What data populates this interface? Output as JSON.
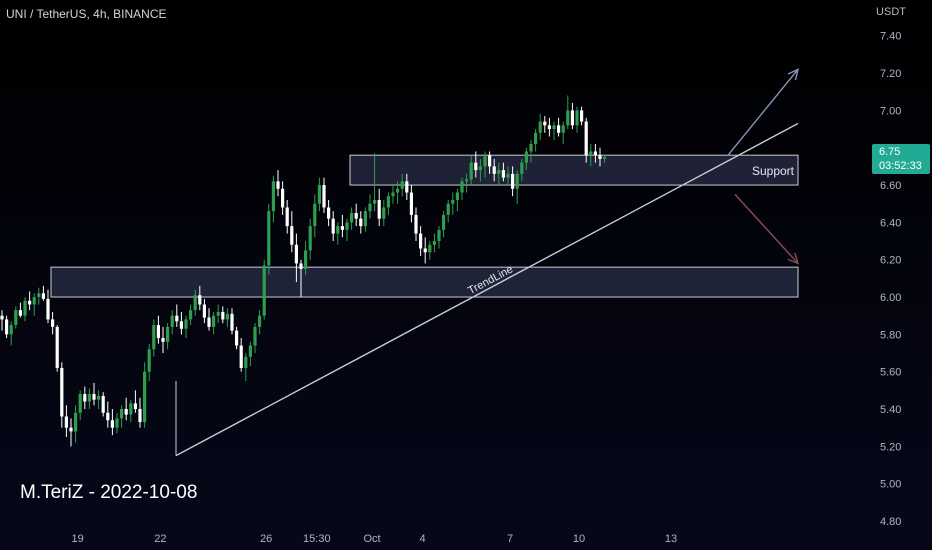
{
  "header": {
    "symbol_line": "UNI / TetherUS, 4h, BINANCE",
    "currency": "USDT"
  },
  "watermark": {
    "signature": "M.TeriZ - 2022-10-08"
  },
  "price_badge": {
    "price": "6.75",
    "countdown": "03:52:33"
  },
  "colors": {
    "background": "#000000",
    "up": "#26a69a",
    "up_body": "#2e9e4f",
    "down": "#ffffff",
    "zone_fill": "#2a2e45",
    "zone_border": "#c9cbd6",
    "trendline": "#c9cbd6",
    "arrow_up": "#8a93b8",
    "arrow_down": "#8a4b55",
    "badge": "#22ab94"
  },
  "chart_data": {
    "type": "candlestick",
    "symbol": "UNI / TetherUS",
    "timeframe": "4h",
    "exchange": "BINANCE",
    "y_axis": {
      "unit": "USDT",
      "ticks": [
        "4.80",
        "5.00",
        "5.20",
        "5.40",
        "5.60",
        "5.80",
        "6.00",
        "6.20",
        "6.40",
        "6.60",
        "6.80",
        "7.00",
        "7.20",
        "7.40"
      ],
      "range": [
        4.8,
        7.42
      ]
    },
    "x_axis": {
      "tick_labels": [
        "19",
        "22",
        "26",
        "15:30",
        "Oct",
        "4",
        "7",
        "10",
        "13"
      ],
      "bar_positions": [
        11,
        29,
        52,
        63,
        75,
        86,
        105,
        120,
        140
      ]
    },
    "bar_count": 155,
    "last_price": 6.75,
    "candles_ohlc": [
      [
        5.9,
        5.93,
        5.82,
        5.88
      ],
      [
        5.88,
        5.9,
        5.78,
        5.8
      ],
      [
        5.8,
        5.87,
        5.74,
        5.85
      ],
      [
        5.85,
        5.95,
        5.83,
        5.93
      ],
      [
        5.93,
        5.97,
        5.89,
        5.9
      ],
      [
        5.9,
        6.0,
        5.87,
        5.98
      ],
      [
        5.98,
        6.03,
        5.93,
        5.96
      ],
      [
        5.96,
        6.02,
        5.9,
        6.0
      ],
      [
        6.0,
        6.05,
        5.96,
        6.02
      ],
      [
        6.02,
        6.06,
        5.98,
        5.99
      ],
      [
        5.99,
        6.04,
        5.86,
        5.88
      ],
      [
        5.88,
        5.92,
        5.8,
        5.84
      ],
      [
        5.84,
        5.85,
        5.6,
        5.62
      ],
      [
        5.62,
        5.65,
        5.3,
        5.36
      ],
      [
        5.36,
        5.42,
        5.25,
        5.3
      ],
      [
        5.3,
        5.35,
        5.2,
        5.28
      ],
      [
        5.28,
        5.42,
        5.22,
        5.38
      ],
      [
        5.38,
        5.5,
        5.34,
        5.48
      ],
      [
        5.48,
        5.52,
        5.4,
        5.44
      ],
      [
        5.44,
        5.51,
        5.4,
        5.48
      ],
      [
        5.48,
        5.54,
        5.42,
        5.45
      ],
      [
        5.45,
        5.5,
        5.4,
        5.47
      ],
      [
        5.47,
        5.49,
        5.36,
        5.38
      ],
      [
        5.38,
        5.44,
        5.3,
        5.34
      ],
      [
        5.34,
        5.4,
        5.26,
        5.3
      ],
      [
        5.3,
        5.38,
        5.27,
        5.35
      ],
      [
        5.35,
        5.42,
        5.3,
        5.4
      ],
      [
        5.4,
        5.46,
        5.34,
        5.37
      ],
      [
        5.37,
        5.45,
        5.33,
        5.43
      ],
      [
        5.43,
        5.5,
        5.38,
        5.4
      ],
      [
        5.4,
        5.46,
        5.3,
        5.33
      ],
      [
        5.33,
        5.65,
        5.3,
        5.6
      ],
      [
        5.6,
        5.75,
        5.55,
        5.72
      ],
      [
        5.72,
        5.88,
        5.68,
        5.85
      ],
      [
        5.85,
        5.9,
        5.75,
        5.78
      ],
      [
        5.78,
        5.84,
        5.7,
        5.76
      ],
      [
        5.76,
        5.86,
        5.72,
        5.84
      ],
      [
        5.84,
        5.93,
        5.8,
        5.9
      ],
      [
        5.9,
        5.96,
        5.84,
        5.87
      ],
      [
        5.87,
        5.92,
        5.8,
        5.83
      ],
      [
        5.83,
        5.9,
        5.78,
        5.88
      ],
      [
        5.88,
        5.96,
        5.85,
        5.93
      ],
      [
        5.93,
        6.04,
        5.9,
        6.01
      ],
      [
        6.01,
        6.06,
        5.93,
        5.96
      ],
      [
        5.96,
        5.99,
        5.86,
        5.89
      ],
      [
        5.89,
        5.94,
        5.82,
        5.84
      ],
      [
        5.84,
        5.92,
        5.8,
        5.9
      ],
      [
        5.9,
        5.96,
        5.86,
        5.92
      ],
      [
        5.92,
        5.95,
        5.86,
        5.88
      ],
      [
        5.88,
        5.94,
        5.84,
        5.91
      ],
      [
        5.91,
        5.94,
        5.8,
        5.82
      ],
      [
        5.82,
        5.84,
        5.72,
        5.74
      ],
      [
        5.74,
        5.78,
        5.6,
        5.62
      ],
      [
        5.62,
        5.7,
        5.55,
        5.68
      ],
      [
        5.68,
        5.76,
        5.63,
        5.74
      ],
      [
        5.74,
        5.86,
        5.7,
        5.84
      ],
      [
        5.84,
        5.93,
        5.8,
        5.9
      ],
      [
        5.9,
        6.2,
        5.88,
        6.17
      ],
      [
        6.17,
        6.5,
        6.12,
        6.46
      ],
      [
        6.46,
        6.65,
        6.4,
        6.62
      ],
      [
        6.62,
        6.68,
        6.54,
        6.58
      ],
      [
        6.58,
        6.62,
        6.44,
        6.48
      ],
      [
        6.48,
        6.52,
        6.34,
        6.38
      ],
      [
        6.38,
        6.46,
        6.24,
        6.28
      ],
      [
        6.28,
        6.34,
        6.08,
        6.18
      ],
      [
        6.18,
        6.2,
        6.0,
        6.15
      ],
      [
        6.15,
        6.3,
        6.12,
        6.25
      ],
      [
        6.25,
        6.42,
        6.2,
        6.38
      ],
      [
        6.38,
        6.55,
        6.32,
        6.5
      ],
      [
        6.5,
        6.64,
        6.46,
        6.6
      ],
      [
        6.6,
        6.64,
        6.45,
        6.48
      ],
      [
        6.48,
        6.52,
        6.38,
        6.42
      ],
      [
        6.42,
        6.46,
        6.3,
        6.34
      ],
      [
        6.34,
        6.4,
        6.28,
        6.38
      ],
      [
        6.38,
        6.44,
        6.32,
        6.36
      ],
      [
        6.36,
        6.42,
        6.3,
        6.4
      ],
      [
        6.4,
        6.48,
        6.36,
        6.45
      ],
      [
        6.45,
        6.5,
        6.38,
        6.42
      ],
      [
        6.42,
        6.46,
        6.34,
        6.38
      ],
      [
        6.38,
        6.48,
        6.35,
        6.46
      ],
      [
        6.46,
        6.55,
        6.42,
        6.5
      ],
      [
        6.5,
        6.77,
        6.46,
        6.52
      ],
      [
        6.52,
        6.58,
        6.38,
        6.42
      ],
      [
        6.42,
        6.52,
        6.38,
        6.48
      ],
      [
        6.48,
        6.56,
        6.44,
        6.54
      ],
      [
        6.54,
        6.6,
        6.5,
        6.56
      ],
      [
        6.56,
        6.62,
        6.5,
        6.58
      ],
      [
        6.58,
        6.66,
        6.54,
        6.62
      ],
      [
        6.62,
        6.66,
        6.52,
        6.56
      ],
      [
        6.56,
        6.6,
        6.4,
        6.44
      ],
      [
        6.44,
        6.48,
        6.3,
        6.34
      ],
      [
        6.34,
        6.38,
        6.22,
        6.26
      ],
      [
        6.26,
        6.32,
        6.18,
        6.24
      ],
      [
        6.24,
        6.3,
        6.2,
        6.28
      ],
      [
        6.28,
        6.34,
        6.24,
        6.3
      ],
      [
        6.3,
        6.38,
        6.26,
        6.36
      ],
      [
        6.36,
        6.46,
        6.32,
        6.44
      ],
      [
        6.44,
        6.52,
        6.4,
        6.5
      ],
      [
        6.5,
        6.56,
        6.44,
        6.52
      ],
      [
        6.52,
        6.58,
        6.46,
        6.56
      ],
      [
        6.56,
        6.64,
        6.52,
        6.62
      ],
      [
        6.62,
        6.66,
        6.56,
        6.63
      ],
      [
        6.63,
        6.76,
        6.6,
        6.72
      ],
      [
        6.72,
        6.78,
        6.64,
        6.68
      ],
      [
        6.68,
        6.74,
        6.62,
        6.7
      ],
      [
        6.7,
        6.78,
        6.64,
        6.76
      ],
      [
        6.76,
        6.78,
        6.66,
        6.7
      ],
      [
        6.7,
        6.74,
        6.62,
        6.66
      ],
      [
        6.66,
        6.72,
        6.6,
        6.68
      ],
      [
        6.68,
        6.72,
        6.62,
        6.64
      ],
      [
        6.64,
        6.7,
        6.6,
        6.66
      ],
      [
        6.66,
        6.7,
        6.54,
        6.58
      ],
      [
        6.58,
        6.68,
        6.5,
        6.66
      ],
      [
        6.66,
        6.74,
        6.62,
        6.72
      ],
      [
        6.72,
        6.8,
        6.68,
        6.78
      ],
      [
        6.78,
        6.84,
        6.72,
        6.82
      ],
      [
        6.82,
        6.9,
        6.78,
        6.88
      ],
      [
        6.88,
        6.98,
        6.84,
        6.94
      ],
      [
        6.94,
        6.97,
        6.88,
        6.92
      ],
      [
        6.92,
        6.96,
        6.86,
        6.9
      ],
      [
        6.9,
        6.94,
        6.84,
        6.92
      ],
      [
        6.92,
        6.96,
        6.86,
        6.88
      ],
      [
        6.88,
        6.94,
        6.82,
        6.92
      ],
      [
        6.92,
        7.08,
        6.9,
        7.0
      ],
      [
        7.0,
        7.04,
        6.9,
        6.92
      ],
      [
        6.92,
        7.02,
        6.88,
        7.0
      ],
      [
        7.0,
        7.02,
        6.92,
        6.94
      ],
      [
        6.94,
        6.96,
        6.72,
        6.76
      ],
      [
        6.76,
        6.82,
        6.7,
        6.78
      ],
      [
        6.78,
        6.82,
        6.72,
        6.76
      ],
      [
        6.76,
        6.8,
        6.7,
        6.74
      ],
      [
        6.74,
        6.76,
        6.72,
        6.75
      ]
    ],
    "annotations": [
      {
        "type": "zone",
        "label": "Support",
        "price_top": 6.76,
        "price_bottom": 6.6
      },
      {
        "type": "zone",
        "label": "",
        "price_top": 6.16,
        "price_bottom": 6.0
      },
      {
        "type": "trendline",
        "label": "TrendLine",
        "from_price": 5.15,
        "to_price": 6.93
      },
      {
        "type": "arrow",
        "direction": "up",
        "from_price": 6.76,
        "to_price": 7.22
      },
      {
        "type": "arrow",
        "direction": "down",
        "from_price": 6.55,
        "to_price": 6.18
      }
    ]
  }
}
